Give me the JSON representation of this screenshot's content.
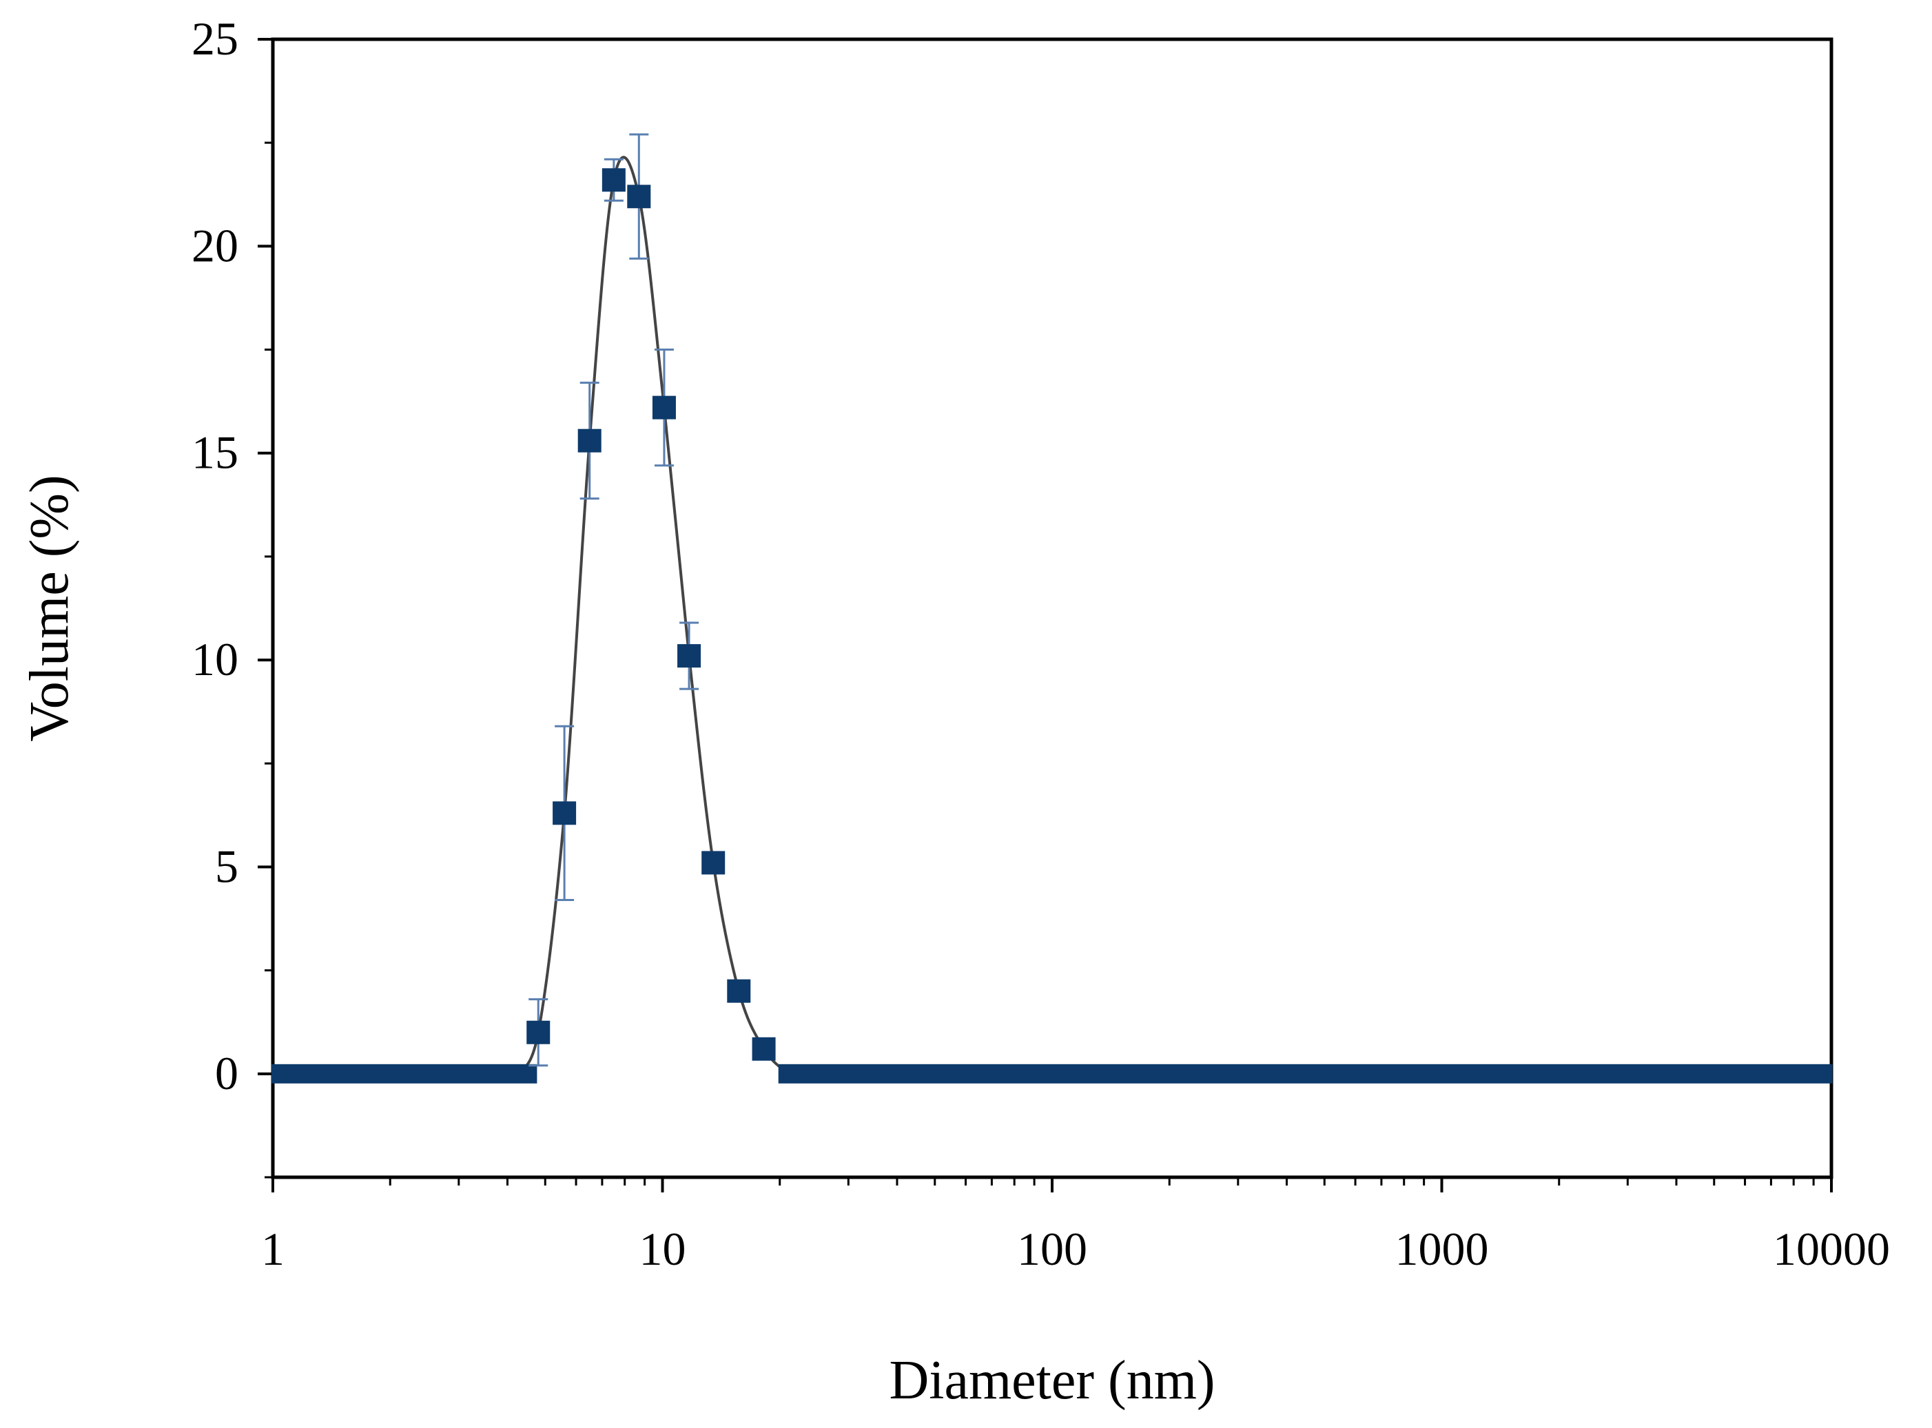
{
  "chart_data": {
    "type": "scatter",
    "title": "",
    "xlabel": "Diameter (nm)",
    "ylabel": "Volume (%)",
    "xscale": "log",
    "xlim": [
      1,
      10000
    ],
    "ylim": [
      -2.5,
      25
    ],
    "xticks": [
      1,
      10,
      100,
      1000,
      10000
    ],
    "xtick_labels": [
      "1",
      "10",
      "100",
      "1000",
      "10000"
    ],
    "yticks": [
      0,
      5,
      10,
      15,
      20,
      25
    ],
    "ytick_labels": [
      "0",
      "5",
      "10",
      "15",
      "20",
      "25"
    ],
    "grid": false,
    "legend": "none",
    "colors": {
      "marker": "#0d3a6b",
      "errorbar": "#5a7fb0",
      "curve": "#444444",
      "frame": "#000000"
    },
    "series": [
      {
        "points": [
          {
            "x": 4.8,
            "y": 1.0,
            "err": 0.8
          },
          {
            "x": 5.6,
            "y": 6.3,
            "err": 2.1
          },
          {
            "x": 6.5,
            "y": 15.3,
            "err": 1.4
          },
          {
            "x": 7.5,
            "y": 21.6,
            "err": 0.5
          },
          {
            "x": 8.7,
            "y": 21.2,
            "err": 1.5
          },
          {
            "x": 10.1,
            "y": 16.1,
            "err": 1.4
          },
          {
            "x": 11.7,
            "y": 10.1,
            "err": 0.8
          },
          {
            "x": 13.5,
            "y": 5.1,
            "err": 0
          },
          {
            "x": 15.7,
            "y": 2.0,
            "err": 0
          },
          {
            "x": 18.2,
            "y": 0.6,
            "err": 0
          }
        ],
        "zero_range": [
          [
            1.05,
            4.5
          ],
          [
            21,
            9500
          ]
        ]
      }
    ]
  }
}
